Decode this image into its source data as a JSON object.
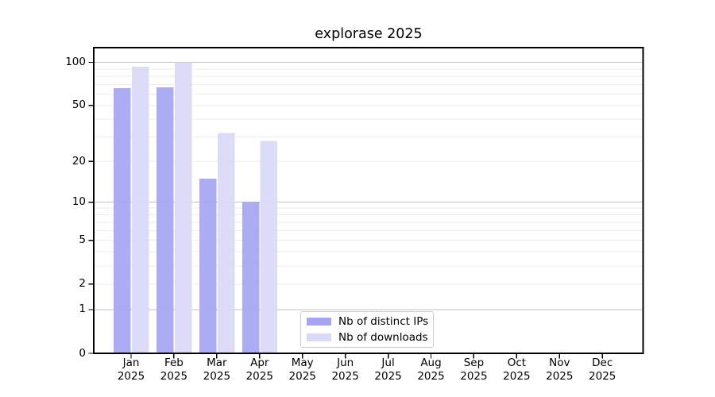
{
  "title": "explorase 2025",
  "chart_data": {
    "type": "bar",
    "title": "explorase 2025",
    "categories": [
      "Jan",
      "Feb",
      "Mar",
      "Apr",
      "May",
      "Jun",
      "Jul",
      "Aug",
      "Sep",
      "Oct",
      "Nov",
      "Dec"
    ],
    "x_tick_year": "2025",
    "series": [
      {
        "name": "Nb of distinct IPs",
        "color": "#a5a5f3",
        "values": [
          66,
          67,
          15,
          10,
          0,
          0,
          0,
          0,
          0,
          0,
          0,
          0
        ]
      },
      {
        "name": "Nb of downloads",
        "color": "#d9d9f8",
        "values": [
          93,
          100,
          32,
          28,
          0,
          0,
          0,
          0,
          0,
          0,
          0,
          0
        ]
      }
    ],
    "yscale": "log1p",
    "ylim": [
      0,
      126.5
    ],
    "yticks": [
      0,
      1,
      2,
      5,
      10,
      20,
      50,
      100
    ],
    "grid_major": [
      1,
      10,
      100
    ],
    "grid_minor": [
      2,
      3,
      4,
      5,
      6,
      7,
      8,
      9,
      20,
      30,
      40,
      50,
      60,
      70,
      80,
      90
    ],
    "legend_position": "bottom-center-inside"
  },
  "colors": {
    "background": "#ffffff",
    "spine": "#000000",
    "tick": "#000000",
    "grid_major": "#c0c0c0",
    "grid_minor": "#ededed",
    "text": "#000000",
    "legend_border": "#cccccc"
  }
}
